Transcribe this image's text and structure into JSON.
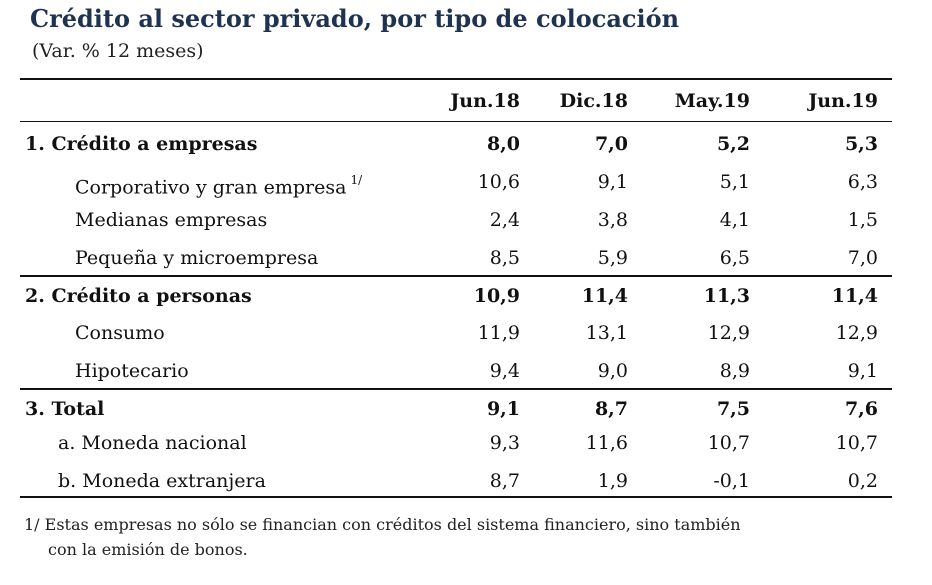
{
  "title": "Crédito al sector privado, por tipo de colocación",
  "subtitle": "(Var. % 12 meses)",
  "columns": [
    "Jun.18",
    "Dic.18",
    "May.19",
    "Jun.19"
  ],
  "rows": [
    {
      "label": "1.  Crédito a empresas",
      "values": [
        "8,0",
        "7,0",
        "5,2",
        "5,3"
      ]
    },
    {
      "label": "Corporativo y gran empresa",
      "sup": "1/",
      "values": [
        "10,6",
        "9,1",
        "5,1",
        "6,3"
      ]
    },
    {
      "label": "Medianas empresas",
      "values": [
        "2,4",
        "3,8",
        "4,1",
        "1,5"
      ]
    },
    {
      "label": "Pequeña y microempresa",
      "values": [
        "8,5",
        "5,9",
        "6,5",
        "7,0"
      ]
    },
    {
      "label": "2.  Crédito a personas",
      "values": [
        "10,9",
        "11,4",
        "11,3",
        "11,4"
      ]
    },
    {
      "label": "Consumo",
      "values": [
        "11,9",
        "13,1",
        "12,9",
        "12,9"
      ]
    },
    {
      "label": "Hipotecario",
      "values": [
        "9,4",
        "9,0",
        "8,9",
        "9,1"
      ]
    },
    {
      "label": "3.  Total",
      "values": [
        "9,1",
        "8,7",
        "7,5",
        "7,6"
      ]
    },
    {
      "label": "a. Moneda nacional",
      "values": [
        "9,3",
        "11,6",
        "10,7",
        "10,7"
      ]
    },
    {
      "label": "b. Moneda extranjera",
      "values": [
        "8,7",
        "1,9",
        "-0,1",
        "0,2"
      ]
    }
  ],
  "footnote": {
    "line1": "1/ Estas empresas no sólo se financian con créditos del sistema financiero, sino también",
    "line2": "con la emisión de bonos."
  }
}
